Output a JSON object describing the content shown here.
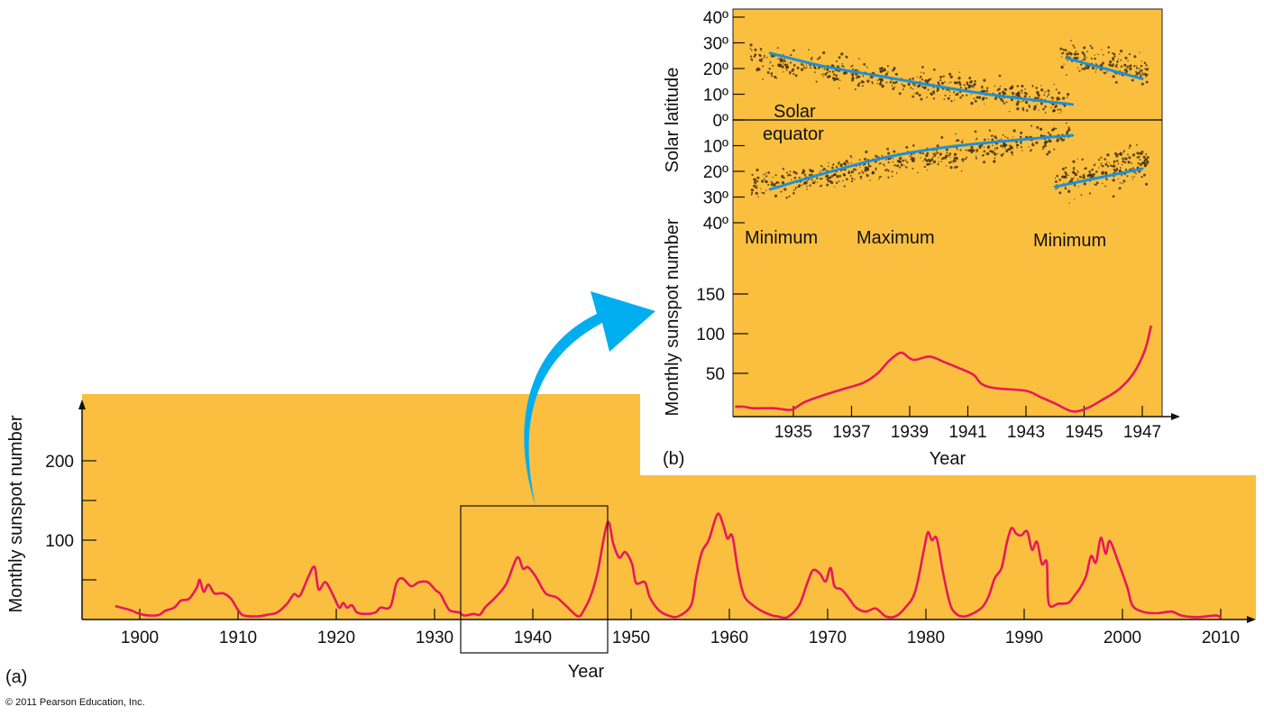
{
  "colors": {
    "background": "#FBBF40",
    "series": "#E8195A",
    "trend": "#1E90D6",
    "arrow": "#00AEEF",
    "dots": "#3A2A10"
  },
  "panel_a_label": "(a)",
  "panel_b_label": "(b)",
  "copyright": "© 2011 Pearson Education, Inc.",
  "chart_data": [
    {
      "type": "line",
      "panel": "a",
      "title": "",
      "xlabel": "Year",
      "ylabel": "Monthly sunspot number",
      "xlim": [
        1894,
        2013
      ],
      "ylim": [
        0,
        280
      ],
      "xticks": [
        1900,
        1910,
        1920,
        1930,
        1940,
        1950,
        1960,
        1970,
        1980,
        1990,
        2000,
        2010
      ],
      "yticks": [
        50,
        100,
        150,
        200
      ],
      "ytick_labels": [
        "",
        "100",
        "",
        "200"
      ],
      "highlight_range": {
        "years": [
          1933,
          1948
        ],
        "values": [
          0,
          140
        ]
      },
      "series": [
        {
          "name": "Monthly sunspot number",
          "points": [
            [
              1897.5,
              17
            ],
            [
              1899,
              12
            ],
            [
              1900,
              7
            ],
            [
              1901,
              5
            ],
            [
              1902,
              6
            ],
            [
              1902.6,
              11
            ],
            [
              1903.5,
              15
            ],
            [
              1904.2,
              24
            ],
            [
              1905,
              26
            ],
            [
              1905.8,
              40
            ],
            [
              1906.1,
              50
            ],
            [
              1906.5,
              35
            ],
            [
              1907,
              44
            ],
            [
              1907.6,
              33
            ],
            [
              1908.5,
              33
            ],
            [
              1909.3,
              26
            ],
            [
              1910,
              12
            ],
            [
              1910.6,
              5
            ],
            [
              1912,
              4
            ],
            [
              1913,
              6
            ],
            [
              1914,
              9
            ],
            [
              1915,
              20
            ],
            [
              1915.7,
              32
            ],
            [
              1916.3,
              30
            ],
            [
              1917.2,
              55
            ],
            [
              1917.8,
              66
            ],
            [
              1918.2,
              38
            ],
            [
              1918.9,
              47
            ],
            [
              1919.7,
              30
            ],
            [
              1920.3,
              15
            ],
            [
              1920.7,
              21
            ],
            [
              1921.1,
              15
            ],
            [
              1921.6,
              18
            ],
            [
              1922.1,
              9
            ],
            [
              1923,
              7
            ],
            [
              1924,
              9
            ],
            [
              1924.5,
              15
            ],
            [
              1925.5,
              16
            ],
            [
              1926.1,
              45
            ],
            [
              1926.7,
              52
            ],
            [
              1927.6,
              42
            ],
            [
              1928.4,
              47
            ],
            [
              1929.3,
              47
            ],
            [
              1930.1,
              37
            ],
            [
              1930.6,
              32
            ],
            [
              1931.1,
              20
            ],
            [
              1931.6,
              11
            ],
            [
              1932.5,
              9
            ],
            [
              1933,
              5
            ],
            [
              1934,
              7
            ],
            [
              1934.6,
              6
            ],
            [
              1935.2,
              16
            ],
            [
              1936.2,
              28
            ],
            [
              1937.3,
              45
            ],
            [
              1938.4,
              78
            ],
            [
              1939,
              64
            ],
            [
              1939.5,
              66
            ],
            [
              1940.3,
              54
            ],
            [
              1941.3,
              33
            ],
            [
              1942.4,
              28
            ],
            [
              1943.4,
              17
            ],
            [
              1944.6,
              4
            ],
            [
              1945.2,
              12
            ],
            [
              1945.9,
              30
            ],
            [
              1946.6,
              60
            ],
            [
              1947.6,
              122
            ],
            [
              1948.2,
              95
            ],
            [
              1948.8,
              78
            ],
            [
              1949.4,
              85
            ],
            [
              1950.1,
              70
            ],
            [
              1950.5,
              46
            ],
            [
              1951.4,
              47
            ],
            [
              1951.9,
              28
            ],
            [
              1952.8,
              12
            ],
            [
              1953.8,
              5
            ],
            [
              1954.8,
              4
            ],
            [
              1956.1,
              18
            ],
            [
              1956.6,
              52
            ],
            [
              1957.2,
              85
            ],
            [
              1957.9,
              100
            ],
            [
              1958.8,
              133
            ],
            [
              1959.4,
              118
            ],
            [
              1959.8,
              102
            ],
            [
              1960.3,
              105
            ],
            [
              1960.9,
              60
            ],
            [
              1961.5,
              30
            ],
            [
              1962.4,
              18
            ],
            [
              1963.4,
              10
            ],
            [
              1964.4,
              5
            ],
            [
              1964.9,
              4
            ],
            [
              1965.9,
              3
            ],
            [
              1967.1,
              18
            ],
            [
              1967.9,
              45
            ],
            [
              1968.5,
              62
            ],
            [
              1969.2,
              58
            ],
            [
              1969.8,
              48
            ],
            [
              1970.3,
              65
            ],
            [
              1970.7,
              42
            ],
            [
              1971.4,
              38
            ],
            [
              1972.1,
              28
            ],
            [
              1972.9,
              15
            ],
            [
              1973.9,
              10
            ],
            [
              1974.9,
              14
            ],
            [
              1975.9,
              4
            ],
            [
              1976.9,
              4
            ],
            [
              1977.9,
              15
            ],
            [
              1978.9,
              35
            ],
            [
              1979.8,
              88
            ],
            [
              1980.2,
              110
            ],
            [
              1980.6,
              100
            ],
            [
              1981.1,
              102
            ],
            [
              1981.7,
              62
            ],
            [
              1982.4,
              22
            ],
            [
              1983,
              8
            ],
            [
              1984,
              4
            ],
            [
              1985.6,
              14
            ],
            [
              1986.4,
              30
            ],
            [
              1987,
              52
            ],
            [
              1987.7,
              65
            ],
            [
              1988.2,
              95
            ],
            [
              1988.7,
              115
            ],
            [
              1989.2,
              108
            ],
            [
              1989.7,
              106
            ],
            [
              1990.3,
              111
            ],
            [
              1990.8,
              88
            ],
            [
              1991.3,
              98
            ],
            [
              1991.8,
              70
            ],
            [
              1992.3,
              72
            ],
            [
              1992.5,
              20
            ],
            [
              1993.5,
              20
            ],
            [
              1994.5,
              21
            ],
            [
              1995.1,
              30
            ],
            [
              1995.7,
              40
            ],
            [
              1996.3,
              55
            ],
            [
              1996.8,
              80
            ],
            [
              1997.3,
              72
            ],
            [
              1997.8,
              103
            ],
            [
              1998.3,
              83
            ],
            [
              1998.7,
              99
            ],
            [
              1999.5,
              75
            ],
            [
              2000.5,
              40
            ],
            [
              2001,
              18
            ],
            [
              2002,
              10
            ],
            [
              2003.5,
              8
            ],
            [
              2005,
              10
            ],
            [
              2006,
              5
            ],
            [
              2007.5,
              3
            ],
            [
              2009.5,
              5
            ],
            [
              2010,
              2
            ]
          ]
        }
      ]
    },
    {
      "type": "scatter",
      "panel": "b-top",
      "title": "",
      "xlabel": "",
      "ylabel": "Solar latitude",
      "xlim": [
        1933,
        1947.7
      ],
      "ylim": [
        -40,
        40
      ],
      "ytick_labels": [
        "40º",
        "30º",
        "20º",
        "10º",
        "0º",
        "10º",
        "20º",
        "30º",
        "40º"
      ],
      "yticks": [
        40,
        30,
        20,
        10,
        0,
        -10,
        -20,
        -30,
        -40
      ],
      "annotations": {
        "equator_line1": "Solar",
        "equator_line2": "equator",
        "min1": "Minimum",
        "max": "Maximum",
        "min2": "Minimum"
      },
      "trend_lines": [
        {
          "name": "north-cycle",
          "points": [
            [
              1934.2,
              26
            ],
            [
              1936,
              21
            ],
            [
              1938,
              17
            ],
            [
              1940,
              13
            ],
            [
              1942,
              9.5
            ],
            [
              1944.6,
              6
            ]
          ]
        },
        {
          "name": "south-cycle",
          "points": [
            [
              1934.2,
              -27
            ],
            [
              1936,
              -21
            ],
            [
              1938,
              -15
            ],
            [
              1940,
              -11
            ],
            [
              1942,
              -8.5
            ],
            [
              1944.6,
              -6
            ]
          ]
        },
        {
          "name": "north-new-cycle",
          "points": [
            [
              1944.4,
              24
            ],
            [
              1947,
              16
            ]
          ]
        },
        {
          "name": "south-new-cycle",
          "points": [
            [
              1944,
              -26
            ],
            [
              1947,
              -19
            ]
          ]
        }
      ],
      "sunspot_clouds": [
        {
          "years": [
            1933.5,
            1944.5
          ],
          "count": 520,
          "hemisphere": "north",
          "lat_start": 24,
          "lat_end": 6,
          "spread": 8
        },
        {
          "years": [
            1933.5,
            1944.5
          ],
          "count": 520,
          "hemisphere": "south",
          "lat_start": -26,
          "lat_end": -6,
          "spread": 8
        },
        {
          "years": [
            1944.2,
            1947.2
          ],
          "count": 170,
          "hemisphere": "north",
          "lat_start": 26,
          "lat_end": 18,
          "spread": 8
        },
        {
          "years": [
            1944,
            1947.2
          ],
          "count": 200,
          "hemisphere": "south",
          "lat_start": -24,
          "lat_end": -16,
          "spread": 10
        }
      ]
    },
    {
      "type": "line",
      "panel": "b-bottom",
      "title": "",
      "xlabel": "Year",
      "ylabel": "Monthly sunspot number",
      "xlim": [
        1933,
        1947.7
      ],
      "ylim": [
        0,
        160
      ],
      "xticks": [
        1935,
        1937,
        1939,
        1941,
        1943,
        1945,
        1947
      ],
      "yticks": [
        50,
        100,
        150
      ],
      "series": [
        {
          "name": "Monthly sunspot number",
          "points": [
            [
              1933,
              8
            ],
            [
              1933.3,
              8
            ],
            [
              1933.6,
              6
            ],
            [
              1934.3,
              6
            ],
            [
              1934.8,
              4
            ],
            [
              1935,
              5
            ],
            [
              1935.4,
              14
            ],
            [
              1936,
              22
            ],
            [
              1936.7,
              30
            ],
            [
              1937.4,
              38
            ],
            [
              1937.9,
              50
            ],
            [
              1938.3,
              66
            ],
            [
              1938.7,
              76
            ],
            [
              1939,
              69
            ],
            [
              1939.2,
              67
            ],
            [
              1939.7,
              71
            ],
            [
              1940.2,
              64
            ],
            [
              1940.8,
              55
            ],
            [
              1941.2,
              48
            ],
            [
              1941.5,
              36
            ],
            [
              1942,
              31
            ],
            [
              1943,
              28
            ],
            [
              1943.5,
              20
            ],
            [
              1944,
              12
            ],
            [
              1944.6,
              2
            ],
            [
              1945.1,
              6
            ],
            [
              1945.6,
              16
            ],
            [
              1946.2,
              30
            ],
            [
              1946.7,
              50
            ],
            [
              1947.1,
              80
            ],
            [
              1947.3,
              110
            ]
          ]
        }
      ]
    }
  ]
}
